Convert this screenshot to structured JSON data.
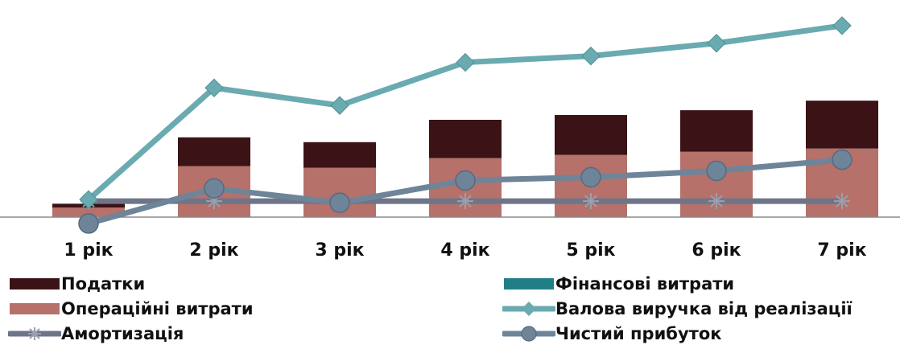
{
  "chart_data": {
    "type": "bar",
    "categories": [
      "1 рік",
      "2 рік",
      "3 рік",
      "4 рік",
      "5 рік",
      "6 рік",
      "7 рік"
    ],
    "ylim": [
      -2,
      62
    ],
    "stack_series": [
      {
        "name": "Операційні витрати",
        "color": "#b5716a",
        "values": [
          3,
          16,
          15.5,
          18.5,
          19.5,
          20.5,
          21.5
        ]
      },
      {
        "name": "Фінансові витрати",
        "color": "#1f7e86",
        "values": [
          0,
          0,
          0,
          0,
          0,
          0,
          0
        ]
      },
      {
        "name": "Податки",
        "color": "#3b1216",
        "values": [
          1.2,
          9,
          8,
          12,
          12.5,
          13,
          15
        ]
      }
    ],
    "line_series": [
      {
        "name": "Валова виручка від реалізації",
        "color": "#6aaab1",
        "marker": "diamond",
        "values": [
          5.5,
          40.5,
          35,
          48.5,
          50.5,
          54.5,
          60
        ]
      },
      {
        "name": "Амортизація",
        "color": "#6e7589",
        "marker": "star",
        "values": [
          5,
          5,
          5,
          5,
          5,
          5,
          5
        ]
      },
      {
        "name": "Чистий прибуток",
        "color": "#6e8499",
        "marker": "circle",
        "values": [
          -2,
          9,
          4.5,
          11.5,
          12.5,
          14.5,
          18
        ]
      }
    ]
  },
  "legend": [
    {
      "label": "Податки",
      "kind": "bar",
      "color": "#3b1216"
    },
    {
      "label": "Фінансові витрати",
      "kind": "bar",
      "color": "#1f7e86"
    },
    {
      "label": "Операційні витрати",
      "kind": "bar",
      "color": "#b5716a"
    },
    {
      "label": "Валова виручка від реалізації",
      "kind": "line",
      "marker": "diamond",
      "color": "#6aaab1"
    },
    {
      "label": "Амортизація",
      "kind": "line",
      "marker": "star",
      "color": "#6e7589"
    },
    {
      "label": "Чистий прибуток",
      "kind": "line",
      "marker": "circle",
      "color": "#6e8499"
    }
  ]
}
